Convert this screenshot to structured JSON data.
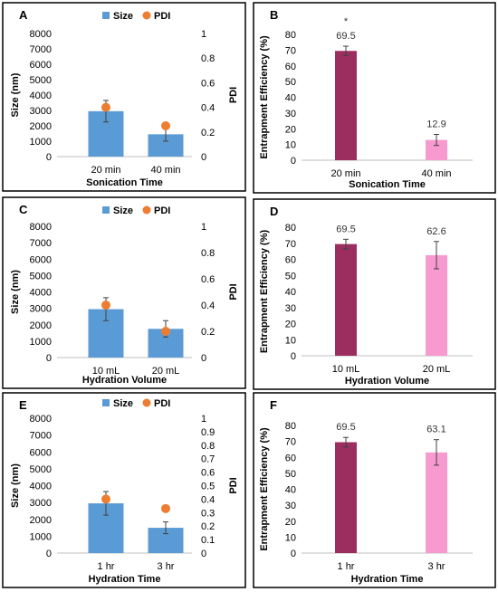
{
  "chart_data": [
    {
      "panel": "A",
      "type": "bar",
      "legend": [
        "Size",
        "PDI"
      ],
      "categories": [
        "20 min",
        "40  min"
      ],
      "series": [
        {
          "name": "Size",
          "axis": "left",
          "values": [
            2950,
            1450
          ],
          "errors": [
            700,
            450
          ]
        },
        {
          "name": "PDI",
          "axis": "right",
          "style": "point",
          "values": [
            0.4,
            0.25
          ]
        }
      ],
      "xlabel": "Sonication Time",
      "ylabel": "Size (nm)",
      "y2label": "PDI",
      "ylim": [
        0,
        8000
      ],
      "yticks": [
        "0",
        "1000",
        "2000",
        "3000",
        "4000",
        "5000",
        "6000",
        "7000",
        "8000"
      ],
      "y2lim": [
        0,
        1
      ],
      "y2ticks": [
        "0",
        "0.2",
        "0.4",
        "0.6",
        "0.8",
        "1"
      ],
      "legend_position": "top",
      "bar_color": "#5b9bd5",
      "point_color": "#ed7d31"
    },
    {
      "panel": "B",
      "type": "bar",
      "categories": [
        "20 min",
        "40  min"
      ],
      "values": [
        69.5,
        12.9
      ],
      "data_labels": [
        "69.5",
        "12.9"
      ],
      "errors": [
        3,
        3.5
      ],
      "annotation": "*",
      "xlabel": "Sonication Time",
      "ylabel": "Entrapment Efficiency (%)",
      "ylim": [
        0,
        80
      ],
      "yticks": [
        "0",
        "10",
        "20",
        "30",
        "40",
        "50",
        "60",
        "70",
        "80"
      ],
      "bar_colors": [
        "#9b2d5f",
        "#f79ad0"
      ]
    },
    {
      "panel": "C",
      "type": "bar",
      "legend": [
        "Size",
        "PDI"
      ],
      "categories": [
        "10 mL",
        "20 mL"
      ],
      "series": [
        {
          "name": "Size",
          "axis": "left",
          "values": [
            2950,
            1750
          ],
          "errors": [
            700,
            500
          ]
        },
        {
          "name": "PDI",
          "axis": "right",
          "style": "point",
          "values": [
            0.4,
            0.2
          ]
        }
      ],
      "xlabel": "Hydration Volume",
      "ylabel": "Size (nm)",
      "y2label": "PDI",
      "ylim": [
        0,
        8000
      ],
      "yticks": [
        "0",
        "1000",
        "2000",
        "3000",
        "4000",
        "5000",
        "6000",
        "7000",
        "8000"
      ],
      "y2lim": [
        0,
        1
      ],
      "y2ticks": [
        "0",
        "0.2",
        "0.4",
        "0.6",
        "0.8",
        "1"
      ],
      "legend_position": "top",
      "bar_color": "#5b9bd5",
      "point_color": "#ed7d31"
    },
    {
      "panel": "D",
      "type": "bar",
      "categories": [
        "10 mL",
        "20 mL"
      ],
      "values": [
        69.5,
        62.6
      ],
      "data_labels": [
        "69.5",
        "62.6"
      ],
      "errors": [
        3,
        8.5
      ],
      "xlabel": "Hydration Volume",
      "ylabel": "Entrapment Efficiency (%)",
      "ylim": [
        0,
        80
      ],
      "yticks": [
        "0",
        "10",
        "20",
        "30",
        "40",
        "50",
        "60",
        "70",
        "80"
      ],
      "bar_colors": [
        "#9b2d5f",
        "#f79ad0"
      ]
    },
    {
      "panel": "E",
      "type": "bar",
      "legend": [
        "Size",
        "PDI"
      ],
      "categories": [
        "1 hr",
        "3 hr"
      ],
      "series": [
        {
          "name": "Size",
          "axis": "left",
          "values": [
            2950,
            1500
          ],
          "errors": [
            700,
            350
          ]
        },
        {
          "name": "PDI",
          "axis": "right",
          "style": "point",
          "values": [
            0.4,
            0.33
          ]
        }
      ],
      "xlabel": "Hydration Time",
      "ylabel": "Size (nm)",
      "y2label": "PDI",
      "ylim": [
        0,
        8000
      ],
      "yticks": [
        "0",
        "1000",
        "2000",
        "3000",
        "4000",
        "5000",
        "6000",
        "7000",
        "8000"
      ],
      "y2lim": [
        0,
        1
      ],
      "y2ticks": [
        "0",
        "0.1",
        "0.2",
        "0.3",
        "0.4",
        "0.5",
        "0.6",
        "0.7",
        "0.8",
        "0.9",
        "1"
      ],
      "legend_position": "top",
      "bar_color": "#5b9bd5",
      "point_color": "#ed7d31"
    },
    {
      "panel": "F",
      "type": "bar",
      "categories": [
        "1 hr",
        "3 hr"
      ],
      "values": [
        69.5,
        63.1
      ],
      "data_labels": [
        "69.5",
        "63.1"
      ],
      "errors": [
        3,
        8
      ],
      "xlabel": "Hydration Time",
      "ylabel": "Entrapment Efficiency (%)",
      "ylim": [
        0,
        80
      ],
      "yticks": [
        "0",
        "10",
        "20",
        "30",
        "40",
        "50",
        "60",
        "70",
        "80"
      ],
      "bar_colors": [
        "#9b2d5f",
        "#f79ad0"
      ]
    }
  ]
}
